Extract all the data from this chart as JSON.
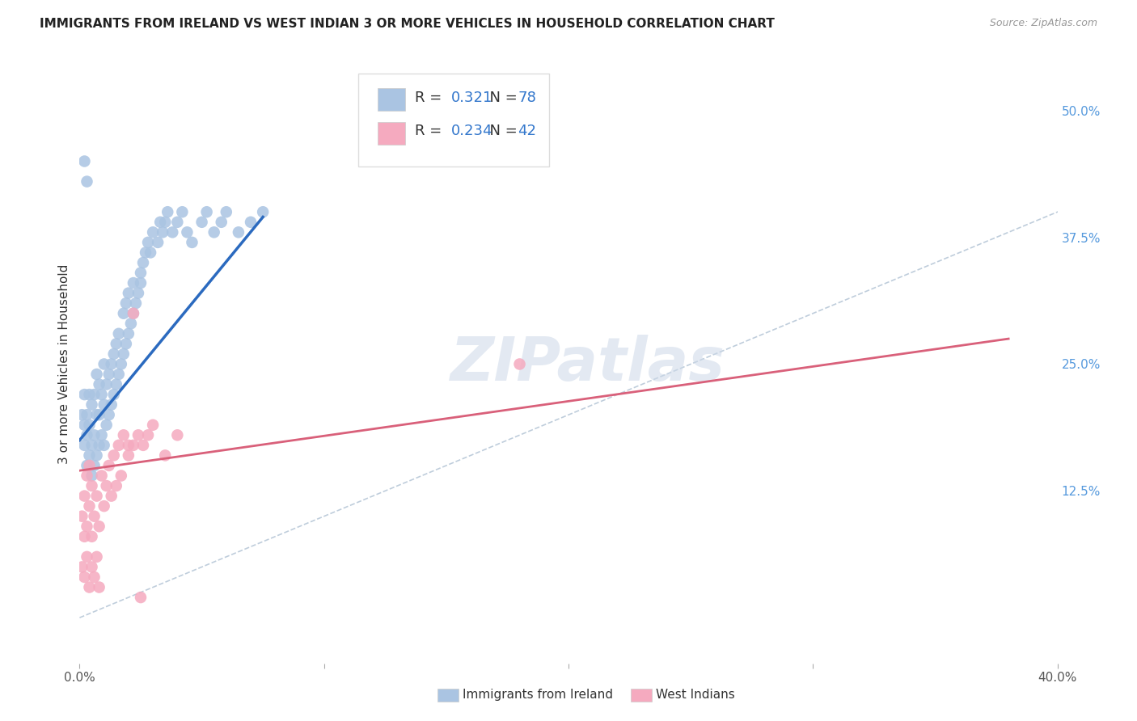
{
  "title": "IMMIGRANTS FROM IRELAND VS WEST INDIAN 3 OR MORE VEHICLES IN HOUSEHOLD CORRELATION CHART",
  "source": "Source: ZipAtlas.com",
  "ylabel": "3 or more Vehicles in Household",
  "ytick_labels": [
    "12.5%",
    "25.0%",
    "37.5%",
    "50.0%"
  ],
  "ytick_values": [
    0.125,
    0.25,
    0.375,
    0.5
  ],
  "xlim": [
    0.0,
    0.4
  ],
  "ylim": [
    -0.045,
    0.545
  ],
  "ireland_R": 0.321,
  "ireland_N": 78,
  "westindian_R": 0.234,
  "westindian_N": 42,
  "ireland_color": "#aac4e2",
  "westindian_color": "#f5aabf",
  "ireland_line_color": "#2b6abf",
  "westindian_line_color": "#d9607a",
  "diagonal_color": "#b8c8d8",
  "background_color": "#ffffff",
  "grid_color": "#d0d8e0",
  "legend_label_ireland": "Immigrants from Ireland",
  "legend_label_westindian": "West Indians",
  "watermark": "ZIPatlas",
  "ireland_x": [
    0.001,
    0.002,
    0.002,
    0.002,
    0.003,
    0.003,
    0.003,
    0.004,
    0.004,
    0.004,
    0.005,
    0.005,
    0.005,
    0.006,
    0.006,
    0.006,
    0.007,
    0.007,
    0.007,
    0.008,
    0.008,
    0.008,
    0.009,
    0.009,
    0.01,
    0.01,
    0.01,
    0.011,
    0.011,
    0.012,
    0.012,
    0.013,
    0.013,
    0.014,
    0.014,
    0.015,
    0.015,
    0.016,
    0.016,
    0.017,
    0.018,
    0.018,
    0.019,
    0.019,
    0.02,
    0.02,
    0.021,
    0.022,
    0.022,
    0.023,
    0.024,
    0.025,
    0.025,
    0.026,
    0.027,
    0.028,
    0.029,
    0.03,
    0.032,
    0.033,
    0.034,
    0.035,
    0.036,
    0.038,
    0.04,
    0.042,
    0.044,
    0.046,
    0.05,
    0.052,
    0.055,
    0.058,
    0.06,
    0.065,
    0.07,
    0.075,
    0.002,
    0.003
  ],
  "ireland_y": [
    0.2,
    0.17,
    0.19,
    0.22,
    0.15,
    0.18,
    0.2,
    0.16,
    0.19,
    0.22,
    0.14,
    0.17,
    0.21,
    0.15,
    0.18,
    0.22,
    0.16,
    0.2,
    0.24,
    0.17,
    0.2,
    0.23,
    0.18,
    0.22,
    0.17,
    0.21,
    0.25,
    0.19,
    0.23,
    0.2,
    0.24,
    0.21,
    0.25,
    0.22,
    0.26,
    0.23,
    0.27,
    0.24,
    0.28,
    0.25,
    0.26,
    0.3,
    0.27,
    0.31,
    0.28,
    0.32,
    0.29,
    0.3,
    0.33,
    0.31,
    0.32,
    0.33,
    0.34,
    0.35,
    0.36,
    0.37,
    0.36,
    0.38,
    0.37,
    0.39,
    0.38,
    0.39,
    0.4,
    0.38,
    0.39,
    0.4,
    0.38,
    0.37,
    0.39,
    0.4,
    0.38,
    0.39,
    0.4,
    0.38,
    0.39,
    0.4,
    0.45,
    0.43
  ],
  "westindian_x": [
    0.001,
    0.002,
    0.002,
    0.003,
    0.003,
    0.004,
    0.004,
    0.005,
    0.005,
    0.006,
    0.007,
    0.008,
    0.009,
    0.01,
    0.011,
    0.012,
    0.013,
    0.014,
    0.015,
    0.016,
    0.017,
    0.018,
    0.02,
    0.022,
    0.024,
    0.026,
    0.028,
    0.03,
    0.035,
    0.04,
    0.001,
    0.002,
    0.003,
    0.004,
    0.005,
    0.006,
    0.007,
    0.008,
    0.18,
    0.02,
    0.022,
    0.025
  ],
  "westindian_y": [
    0.1,
    0.08,
    0.12,
    0.09,
    0.14,
    0.11,
    0.15,
    0.08,
    0.13,
    0.1,
    0.12,
    0.09,
    0.14,
    0.11,
    0.13,
    0.15,
    0.12,
    0.16,
    0.13,
    0.17,
    0.14,
    0.18,
    0.16,
    0.17,
    0.18,
    0.17,
    0.18,
    0.19,
    0.16,
    0.18,
    0.05,
    0.04,
    0.06,
    0.03,
    0.05,
    0.04,
    0.06,
    0.03,
    0.25,
    0.17,
    0.3,
    0.02
  ],
  "ireland_line_x0": 0.0,
  "ireland_line_x1": 0.075,
  "ireland_line_y0": 0.175,
  "ireland_line_y1": 0.395,
  "westindian_line_x0": 0.0,
  "westindian_line_x1": 0.38,
  "westindian_line_y0": 0.145,
  "westindian_line_y1": 0.275
}
